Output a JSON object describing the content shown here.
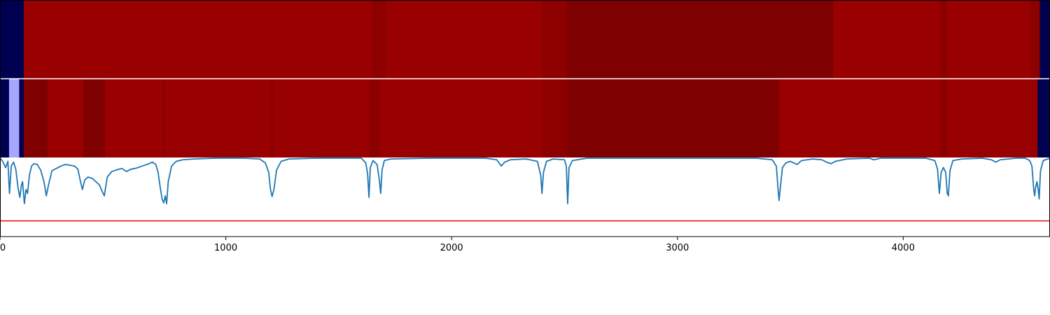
{
  "chart_data": [
    {
      "type": "heatmap",
      "x_range": [
        0,
        4650
      ],
      "colors": {
        "low": "#000050",
        "light": "#a6a6ff",
        "mid": "#990000",
        "high": "#7f0000",
        "midhigh": "#8c0000"
      },
      "segments": [
        {
          "x0": 0,
          "x1": 105,
          "level": "low"
        },
        {
          "x0": 105,
          "x1": 1650,
          "level": "mid"
        },
        {
          "x0": 1650,
          "x1": 1710,
          "level": "midhigh"
        },
        {
          "x0": 1710,
          "x1": 2400,
          "level": "mid"
        },
        {
          "x0": 2400,
          "x1": 2510,
          "level": "midhigh"
        },
        {
          "x0": 2510,
          "x1": 3690,
          "level": "high"
        },
        {
          "x0": 3690,
          "x1": 4165,
          "level": "mid"
        },
        {
          "x0": 4165,
          "x1": 4195,
          "level": "midhigh"
        },
        {
          "x0": 4195,
          "x1": 4560,
          "level": "mid"
        },
        {
          "x0": 4560,
          "x1": 4605,
          "level": "midhigh"
        },
        {
          "x0": 4605,
          "x1": 4650,
          "level": "low"
        }
      ]
    },
    {
      "type": "heatmap",
      "x_range": [
        0,
        4650
      ],
      "segments": [
        {
          "x0": 0,
          "x1": 40,
          "level": "low"
        },
        {
          "x0": 40,
          "x1": 85,
          "level": "light"
        },
        {
          "x0": 85,
          "x1": 105,
          "level": "low"
        },
        {
          "x0": 105,
          "x1": 210,
          "level": "high"
        },
        {
          "x0": 210,
          "x1": 370,
          "level": "mid"
        },
        {
          "x0": 370,
          "x1": 465,
          "level": "high"
        },
        {
          "x0": 465,
          "x1": 720,
          "level": "mid"
        },
        {
          "x0": 720,
          "x1": 730,
          "level": "midhigh"
        },
        {
          "x0": 730,
          "x1": 1200,
          "level": "mid"
        },
        {
          "x0": 1200,
          "x1": 1210,
          "level": "midhigh"
        },
        {
          "x0": 1210,
          "x1": 1635,
          "level": "mid"
        },
        {
          "x0": 1635,
          "x1": 1685,
          "level": "midhigh"
        },
        {
          "x0": 1685,
          "x1": 2405,
          "level": "mid"
        },
        {
          "x0": 2405,
          "x1": 2515,
          "level": "midhigh"
        },
        {
          "x0": 2515,
          "x1": 3450,
          "level": "high"
        },
        {
          "x0": 3450,
          "x1": 4165,
          "level": "mid"
        },
        {
          "x0": 4165,
          "x1": 4195,
          "level": "midhigh"
        },
        {
          "x0": 4195,
          "x1": 4595,
          "level": "mid"
        },
        {
          "x0": 4595,
          "x1": 4650,
          "level": "low"
        }
      ]
    },
    {
      "type": "line",
      "x_range": [
        0,
        4650
      ],
      "y_range": [
        0,
        1
      ],
      "series": [
        {
          "color": "#1f77b4",
          "points": [
            [
              0,
              1.0
            ],
            [
              10,
              0.97
            ],
            [
              25,
              0.88
            ],
            [
              35,
              0.96
            ],
            [
              42,
              0.55
            ],
            [
              50,
              0.9
            ],
            [
              60,
              0.95
            ],
            [
              70,
              0.86
            ],
            [
              80,
              0.62
            ],
            [
              88,
              0.5
            ],
            [
              95,
              0.66
            ],
            [
              100,
              0.7
            ],
            [
              108,
              0.42
            ],
            [
              115,
              0.6
            ],
            [
              122,
              0.55
            ],
            [
              130,
              0.78
            ],
            [
              140,
              0.9
            ],
            [
              150,
              0.93
            ],
            [
              165,
              0.92
            ],
            [
              180,
              0.85
            ],
            [
              195,
              0.7
            ],
            [
              205,
              0.52
            ],
            [
              215,
              0.66
            ],
            [
              230,
              0.84
            ],
            [
              250,
              0.87
            ],
            [
              270,
              0.9
            ],
            [
              290,
              0.92
            ],
            [
              310,
              0.91
            ],
            [
              330,
              0.9
            ],
            [
              345,
              0.86
            ],
            [
              355,
              0.72
            ],
            [
              365,
              0.6
            ],
            [
              375,
              0.72
            ],
            [
              390,
              0.76
            ],
            [
              410,
              0.74
            ],
            [
              425,
              0.7
            ],
            [
              440,
              0.66
            ],
            [
              452,
              0.58
            ],
            [
              462,
              0.52
            ],
            [
              475,
              0.76
            ],
            [
              495,
              0.83
            ],
            [
              515,
              0.85
            ],
            [
              540,
              0.87
            ],
            [
              560,
              0.83
            ],
            [
              580,
              0.86
            ],
            [
              600,
              0.87
            ],
            [
              620,
              0.89
            ],
            [
              640,
              0.91
            ],
            [
              660,
              0.93
            ],
            [
              675,
              0.95
            ],
            [
              690,
              0.92
            ],
            [
              700,
              0.82
            ],
            [
              710,
              0.62
            ],
            [
              718,
              0.48
            ],
            [
              725,
              0.43
            ],
            [
              732,
              0.52
            ],
            [
              738,
              0.42
            ],
            [
              745,
              0.7
            ],
            [
              760,
              0.9
            ],
            [
              780,
              0.96
            ],
            [
              810,
              0.98
            ],
            [
              860,
              0.99
            ],
            [
              950,
              1.0
            ],
            [
              1080,
              1.0
            ],
            [
              1150,
              0.99
            ],
            [
              1175,
              0.94
            ],
            [
              1190,
              0.82
            ],
            [
              1198,
              0.6
            ],
            [
              1205,
              0.51
            ],
            [
              1213,
              0.6
            ],
            [
              1225,
              0.85
            ],
            [
              1245,
              0.96
            ],
            [
              1280,
              0.99
            ],
            [
              1400,
              1.0
            ],
            [
              1600,
              1.0
            ],
            [
              1620,
              0.94
            ],
            [
              1628,
              0.8
            ],
            [
              1634,
              0.5
            ],
            [
              1640,
              0.88
            ],
            [
              1652,
              0.97
            ],
            [
              1670,
              0.92
            ],
            [
              1680,
              0.72
            ],
            [
              1686,
              0.55
            ],
            [
              1692,
              0.85
            ],
            [
              1702,
              0.97
            ],
            [
              1730,
              0.99
            ],
            [
              1900,
              1.0
            ],
            [
              2150,
              1.0
            ],
            [
              2200,
              0.98
            ],
            [
              2220,
              0.9
            ],
            [
              2235,
              0.95
            ],
            [
              2260,
              0.98
            ],
            [
              2330,
              0.99
            ],
            [
              2380,
              0.96
            ],
            [
              2395,
              0.78
            ],
            [
              2400,
              0.55
            ],
            [
              2407,
              0.82
            ],
            [
              2420,
              0.96
            ],
            [
              2450,
              0.99
            ],
            [
              2500,
              0.98
            ],
            [
              2508,
              0.9
            ],
            [
              2514,
              0.42
            ],
            [
              2520,
              0.88
            ],
            [
              2535,
              0.97
            ],
            [
              2600,
              1.0
            ],
            [
              3000,
              1.0
            ],
            [
              3350,
              1.0
            ],
            [
              3420,
              0.98
            ],
            [
              3438,
              0.9
            ],
            [
              3446,
              0.6
            ],
            [
              3450,
              0.46
            ],
            [
              3455,
              0.6
            ],
            [
              3465,
              0.88
            ],
            [
              3480,
              0.94
            ],
            [
              3500,
              0.96
            ],
            [
              3530,
              0.92
            ],
            [
              3550,
              0.97
            ],
            [
              3600,
              0.99
            ],
            [
              3640,
              0.98
            ],
            [
              3660,
              0.95
            ],
            [
              3680,
              0.93
            ],
            [
              3700,
              0.96
            ],
            [
              3750,
              0.99
            ],
            [
              3850,
              1.0
            ],
            [
              3870,
              0.98
            ],
            [
              3900,
              1.0
            ],
            [
              4100,
              1.0
            ],
            [
              4140,
              0.97
            ],
            [
              4152,
              0.86
            ],
            [
              4160,
              0.55
            ],
            [
              4168,
              0.82
            ],
            [
              4178,
              0.88
            ],
            [
              4188,
              0.82
            ],
            [
              4195,
              0.55
            ],
            [
              4200,
              0.52
            ],
            [
              4207,
              0.84
            ],
            [
              4220,
              0.97
            ],
            [
              4260,
              0.99
            ],
            [
              4350,
              1.0
            ],
            [
              4390,
              0.98
            ],
            [
              4410,
              0.95
            ],
            [
              4430,
              0.98
            ],
            [
              4500,
              1.0
            ],
            [
              4540,
              1.0
            ],
            [
              4560,
              0.97
            ],
            [
              4570,
              0.9
            ],
            [
              4578,
              0.6
            ],
            [
              4582,
              0.52
            ],
            [
              4586,
              0.62
            ],
            [
              4592,
              0.7
            ],
            [
              4598,
              0.6
            ],
            [
              4602,
              0.48
            ],
            [
              4608,
              0.84
            ],
            [
              4620,
              0.97
            ],
            [
              4640,
              0.99
            ],
            [
              4650,
              1.0
            ]
          ]
        }
      ],
      "threshold": {
        "y": 0.2,
        "color": "#e41a1c"
      },
      "xticks": [
        0,
        1000,
        2000,
        3000,
        4000
      ],
      "xtick_labels": [
        "0",
        "1000",
        "2000",
        "3000",
        "4000"
      ]
    }
  ]
}
